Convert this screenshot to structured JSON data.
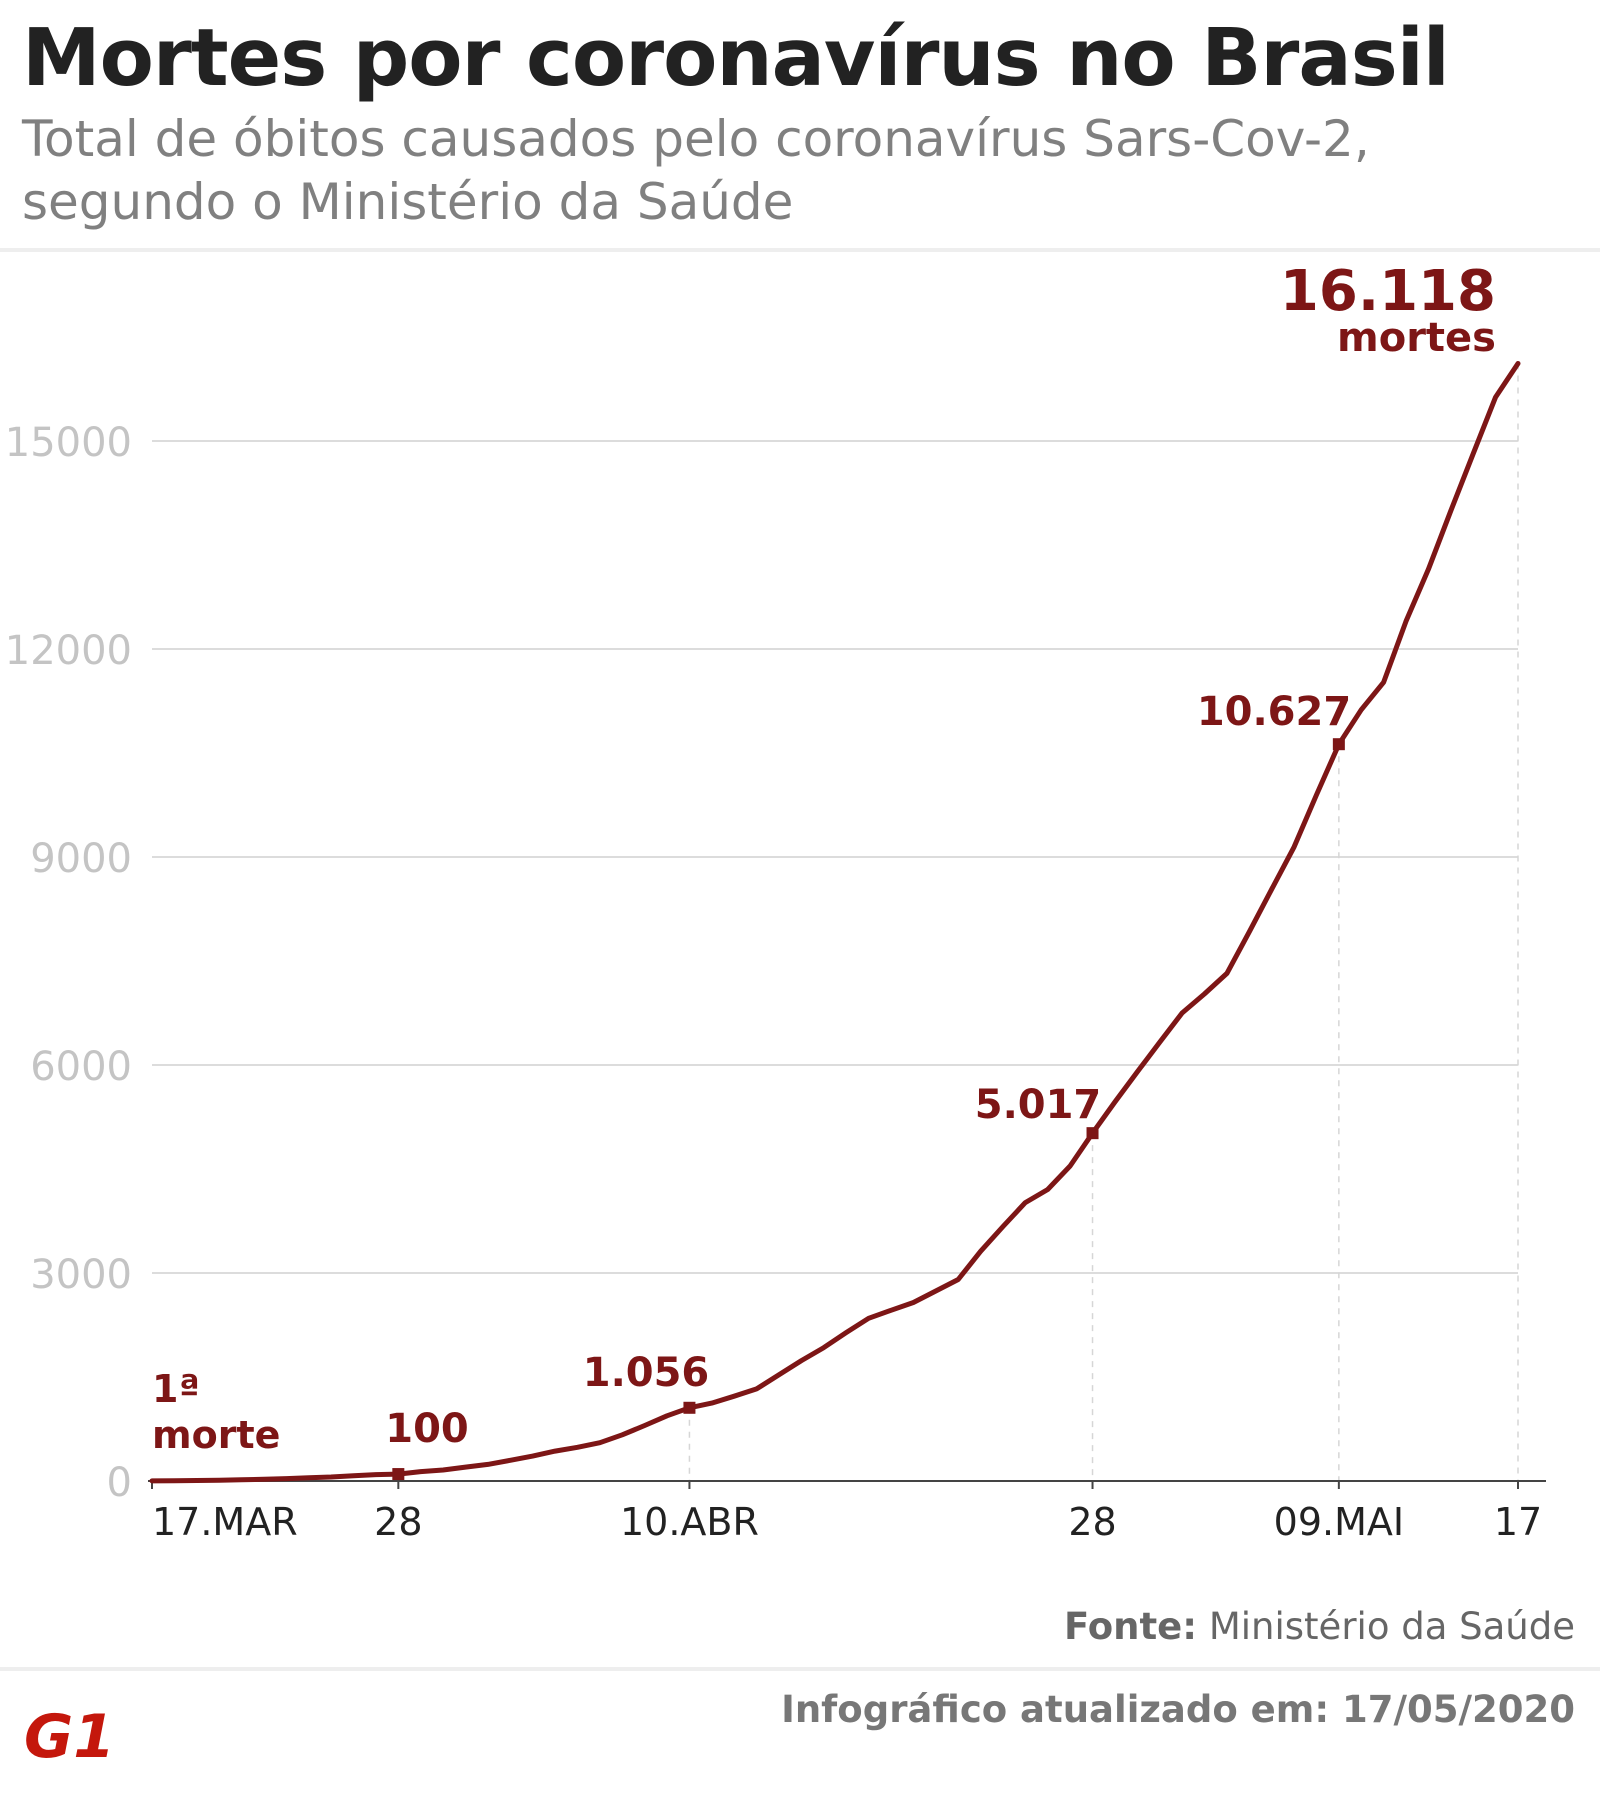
{
  "header": {
    "title": "Mortes por coronavírus no Brasil",
    "subtitle": "Total de óbitos causados pelo coronavírus Sars-Cov-2, segundo o Ministério da Saúde"
  },
  "footer": {
    "source_label": "Fonte:",
    "source_value": "Ministério da Saúde",
    "updated": "Infográfico atualizado em: 17/05/2020",
    "logo": "G1"
  },
  "colors": {
    "line": "#7d1616",
    "grid": "#d0d0d0",
    "axis_text": "#c4c4c4",
    "label_text": "#222222"
  },
  "chart_data": {
    "type": "line",
    "title": "Mortes por coronavírus no Brasil",
    "subtitle": "Total de óbitos causados pelo coronavírus Sars-Cov-2, segundo o Ministério da Saúde",
    "xlabel": "",
    "ylabel": "",
    "ylim": [
      0,
      16500
    ],
    "yticks": [
      0,
      3000,
      6000,
      9000,
      12000,
      15000
    ],
    "grid": "horizontal",
    "x": [
      "17/03",
      "18/03",
      "19/03",
      "20/03",
      "21/03",
      "22/03",
      "23/03",
      "24/03",
      "25/03",
      "26/03",
      "27/03",
      "28/03",
      "29/03",
      "30/03",
      "31/03",
      "01/04",
      "02/04",
      "03/04",
      "04/04",
      "05/04",
      "06/04",
      "07/04",
      "08/04",
      "09/04",
      "10/04",
      "11/04",
      "12/04",
      "13/04",
      "14/04",
      "15/04",
      "16/04",
      "17/04",
      "18/04",
      "19/04",
      "20/04",
      "21/04",
      "22/04",
      "23/04",
      "24/04",
      "25/04",
      "26/04",
      "27/04",
      "28/04",
      "29/04",
      "30/04",
      "01/05",
      "02/05",
      "03/05",
      "04/05",
      "05/05",
      "06/05",
      "07/05",
      "08/05",
      "09/05",
      "10/05",
      "11/05",
      "12/05",
      "13/05",
      "14/05",
      "15/05",
      "16/05",
      "17/05"
    ],
    "xticks": [
      {
        "x": "17/03",
        "label": "17.MAR"
      },
      {
        "x": "28/03",
        "label": "28"
      },
      {
        "x": "10/04",
        "label": "10.ABR"
      },
      {
        "x": "28/04",
        "label": "28"
      },
      {
        "x": "09/05",
        "label": "09.MAI"
      },
      {
        "x": "17/05",
        "label": "17"
      }
    ],
    "series": [
      {
        "values": [
          1,
          4,
          7,
          11,
          18,
          25,
          34,
          46,
          57,
          77,
          92,
          100,
          136,
          159,
          201,
          240,
          299,
          359,
          431,
          486,
          553,
          667,
          800,
          941,
          1056,
          1124,
          1223,
          1328,
          1532,
          1736,
          1924,
          2141,
          2347,
          2462,
          2575,
          2741,
          2906,
          3313,
          3670,
          4016,
          4205,
          4543,
          5017,
          5466,
          5901,
          6329,
          6750,
          7025,
          7321,
          7921,
          8536,
          9146,
          9897,
          10627,
          11123,
          11519,
          12400,
          13149,
          13993,
          14817,
          15633,
          16118
        ]
      }
    ],
    "markers": [
      "28/03",
      "10/04",
      "28/04",
      "09/05"
    ],
    "annotations": [
      {
        "x": "17/03",
        "line1": "1ª",
        "line2": "morte"
      },
      {
        "x": "28/03",
        "text": "100"
      },
      {
        "x": "10/04",
        "text": "1.056"
      },
      {
        "x": "28/04",
        "text": "5.017"
      },
      {
        "x": "09/05",
        "text": "10.627"
      },
      {
        "x": "17/05",
        "line1": "16.118",
        "line2": "mortes"
      }
    ]
  }
}
